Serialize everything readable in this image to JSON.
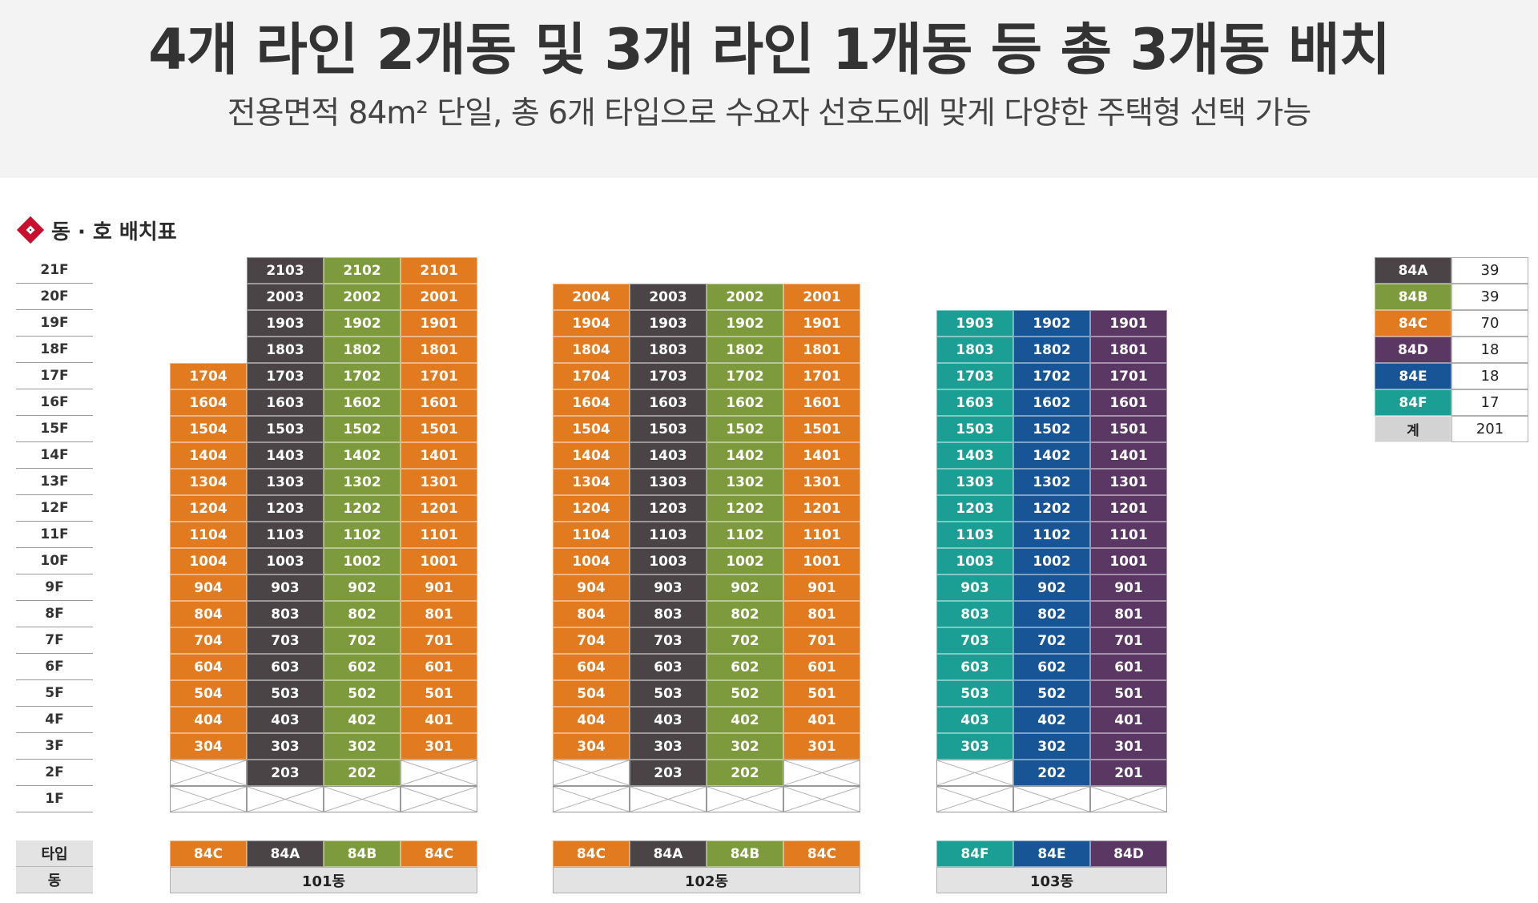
{
  "header": {
    "title": "4개 라인 2개동 및 3개 라인 1개동 등 총 3개동 배치",
    "subtitle": "전용면적 84m² 단일, 총 6개 타입으로 수요자 선호도에 맞게 다양한 주택형 선택 가능"
  },
  "section": {
    "title": "동 · 호 배치표"
  },
  "colors": {
    "84A": "#4a4446",
    "84B": "#7d9a3c",
    "84C": "#e27a1f",
    "84D": "#5b3764",
    "84E": "#175597",
    "84F": "#1b9f94",
    "total": "#d3d3d3"
  },
  "floors": [
    "21F",
    "20F",
    "19F",
    "18F",
    "17F",
    "16F",
    "15F",
    "14F",
    "13F",
    "12F",
    "11F",
    "10F",
    "9F",
    "8F",
    "7F",
    "6F",
    "5F",
    "4F",
    "3F",
    "2F",
    "1F"
  ],
  "labels": {
    "type": "타입",
    "dong": "동"
  },
  "buildings": [
    {
      "name": "101동",
      "columns": [
        {
          "line": "04",
          "type": "84C",
          "topFloor": 17,
          "lowestFloor": 3
        },
        {
          "line": "03",
          "type": "84A",
          "topFloor": 21,
          "lowestFloor": 2
        },
        {
          "line": "02",
          "type": "84B",
          "topFloor": 21,
          "lowestFloor": 2
        },
        {
          "line": "01",
          "type": "84C",
          "topFloor": 21,
          "lowestFloor": 3
        }
      ]
    },
    {
      "name": "102동",
      "columns": [
        {
          "line": "04",
          "type": "84C",
          "topFloor": 20,
          "lowestFloor": 3
        },
        {
          "line": "03",
          "type": "84A",
          "topFloor": 20,
          "lowestFloor": 2
        },
        {
          "line": "02",
          "type": "84B",
          "topFloor": 20,
          "lowestFloor": 2
        },
        {
          "line": "01",
          "type": "84C",
          "topFloor": 20,
          "lowestFloor": 3
        }
      ]
    },
    {
      "name": "103동",
      "columns": [
        {
          "line": "03",
          "type": "84F",
          "topFloor": 19,
          "lowestFloor": 3
        },
        {
          "line": "02",
          "type": "84E",
          "topFloor": 19,
          "lowestFloor": 2
        },
        {
          "line": "01",
          "type": "84D",
          "topFloor": 19,
          "lowestFloor": 2
        }
      ]
    }
  ],
  "legend": [
    {
      "type": "84A",
      "count": "39"
    },
    {
      "type": "84B",
      "count": "39"
    },
    {
      "type": "84C",
      "count": "70"
    },
    {
      "type": "84D",
      "count": "18"
    },
    {
      "type": "84E",
      "count": "18"
    },
    {
      "type": "84F",
      "count": "17"
    }
  ],
  "total": {
    "label": "계",
    "count": "201"
  }
}
